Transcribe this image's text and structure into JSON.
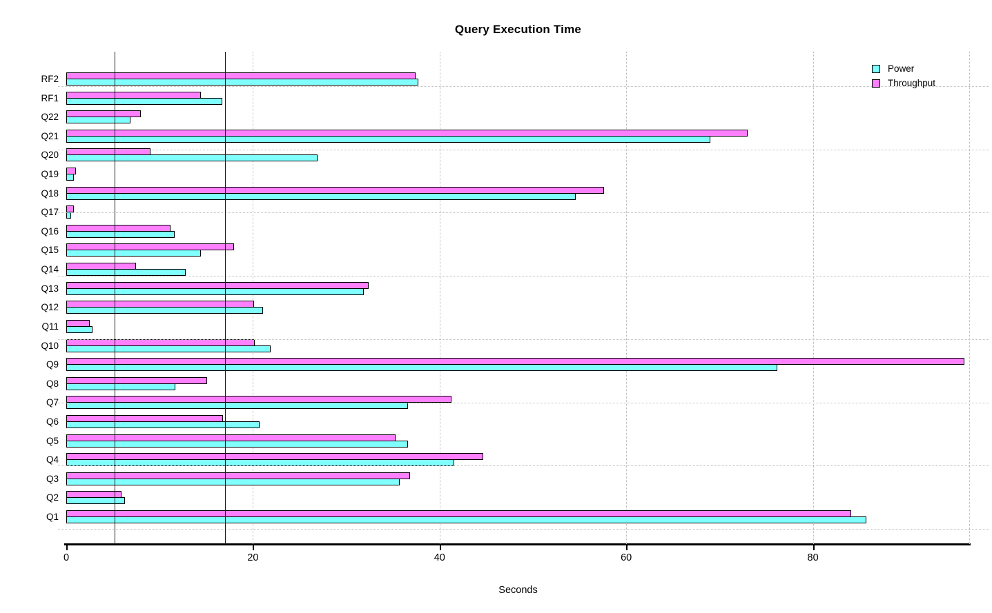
{
  "chart_data": {
    "type": "bar",
    "orientation": "horizontal",
    "title": "Query Execution Time",
    "xlabel": "Seconds",
    "categories_top_to_bottom": true,
    "categories": [
      "RF2",
      "RF1",
      "Q22",
      "Q21",
      "Q20",
      "Q19",
      "Q18",
      "Q17",
      "Q16",
      "Q15",
      "Q14",
      "Q13",
      "Q12",
      "Q11",
      "Q10",
      "Q9",
      "Q8",
      "Q7",
      "Q6",
      "Q5",
      "Q4",
      "Q3",
      "Q2",
      "Q1"
    ],
    "series": [
      {
        "name": "Power",
        "color": "#80FFFF",
        "position_in_group": "bottom",
        "values": [
          37.7,
          16.7,
          6.9,
          69.0,
          26.9,
          0.8,
          54.6,
          0.5,
          11.6,
          14.4,
          12.8,
          31.9,
          21.1,
          2.8,
          21.9,
          76.2,
          11.7,
          36.6,
          20.7,
          36.6,
          41.6,
          35.7,
          6.3,
          85.7
        ]
      },
      {
        "name": "Throughput",
        "color": "#FF80FF",
        "position_in_group": "top",
        "values": [
          37.4,
          14.4,
          8.0,
          73.0,
          9.0,
          1.0,
          57.6,
          0.8,
          11.2,
          18.0,
          7.5,
          32.4,
          20.1,
          2.5,
          20.2,
          96.2,
          15.1,
          41.3,
          16.8,
          35.3,
          44.7,
          36.8,
          5.9,
          84.1
        ]
      }
    ],
    "xticks": [
      0,
      20,
      40,
      60,
      80
    ],
    "xtick_labels": [
      "0",
      "20",
      "40",
      "60",
      "80"
    ],
    "xlim": [
      0,
      96.8
    ],
    "reference_lines": [
      5.2,
      17.0
    ],
    "grid": {
      "vertical_dotted_at_ticks": true,
      "horizontal_dotted": true
    },
    "legend_position": "top-right",
    "bar_border_color": "#000000",
    "axis_color": "#000000"
  }
}
